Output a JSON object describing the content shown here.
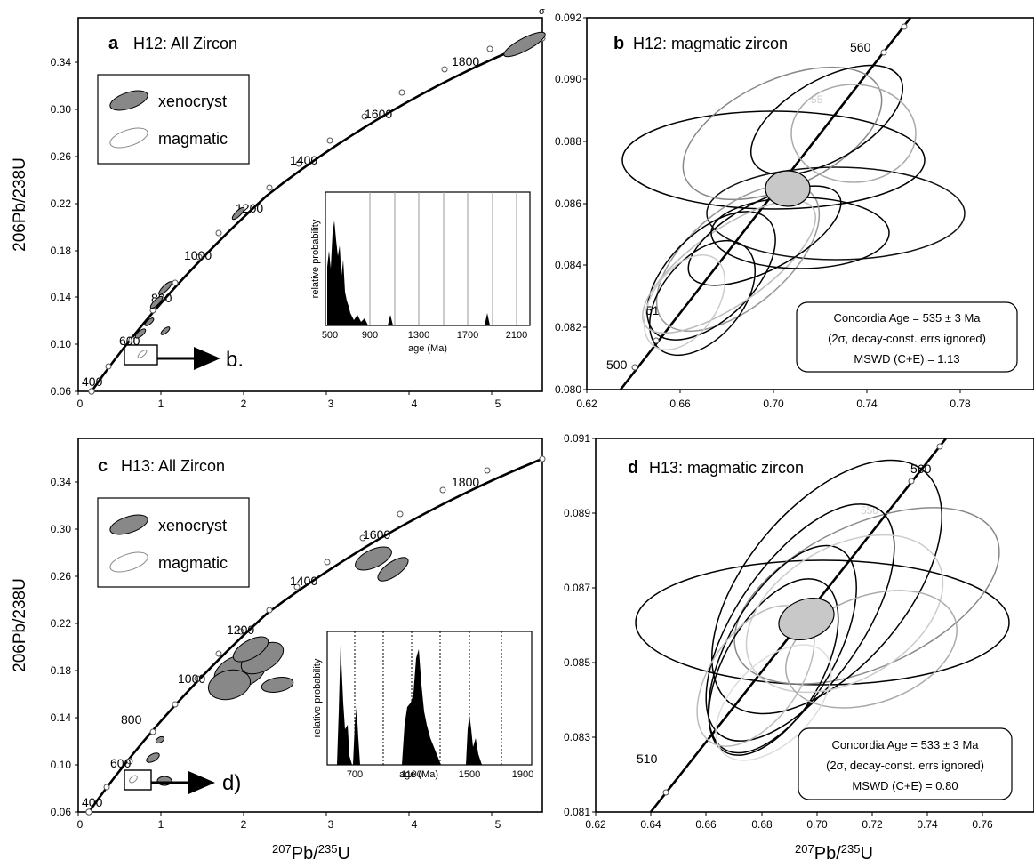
{
  "figure": {
    "ylabel_main": "206Pb/238U",
    "ylabel_sup_a": "206",
    "ylabel_base_a": "Pb/",
    "ylabel_sup_b": "238",
    "ylabel_base_b": "U",
    "xlabel_sup_a": "207",
    "xlabel_base_a": "Pb/",
    "xlabel_sup_b": "235",
    "xlabel_base_b": "U",
    "sigma_mark": "σ"
  },
  "legend": {
    "xenocryst": "xenocryst",
    "magmatic": "magmatic"
  },
  "chart_data": [
    {
      "panel": "a",
      "type": "scatter",
      "letter": "a",
      "title": "H12: All Zircon",
      "xlim": [
        0,
        5.5
      ],
      "ylim": [
        0.06,
        0.35
      ],
      "xticks": [
        "0",
        "1",
        "2",
        "3",
        "4",
        "5"
      ],
      "yticks": [
        "0.06",
        "0.10",
        "0.14",
        "0.18",
        "0.22",
        "0.26",
        "0.30",
        "0.34"
      ],
      "concordia_ages_labeled": [
        "400",
        "600",
        "800",
        "1000",
        "1200",
        "1400",
        "1600",
        "1800"
      ],
      "arrow_label": "b.",
      "xenocryst_points": [
        {
          "x": 5.2,
          "y": 0.33
        },
        {
          "x": 1.15,
          "y": 0.13
        }
      ],
      "magmatic_points": [
        {
          "x": 0.7,
          "y": 0.087
        },
        {
          "x": 0.75,
          "y": 0.09
        },
        {
          "x": 0.9,
          "y": 0.1
        },
        {
          "x": 1.0,
          "y": 0.11
        },
        {
          "x": 1.9,
          "y": 0.18
        }
      ],
      "inset": {
        "type": "area",
        "xlabel": "age (Ma)",
        "ylabel": "relative probability",
        "xticks": [
          "500",
          "900",
          "1300",
          "1700",
          "2100"
        ],
        "xlim": [
          500,
          2200
        ],
        "x": [
          520,
          560,
          590,
          620,
          650,
          680,
          710,
          750,
          790,
          830,
          1050,
          1850
        ],
        "y": [
          0.6,
          1.0,
          0.55,
          0.7,
          0.35,
          0.25,
          0.3,
          0.2,
          0.15,
          0.12,
          0.12,
          0.08
        ]
      }
    },
    {
      "panel": "b",
      "type": "scatter",
      "letter": "b",
      "title": "H12: magmatic zircon",
      "xlim": [
        0.62,
        0.8
      ],
      "ylim": [
        0.08,
        0.092
      ],
      "xticks": [
        "0.62",
        "0.66",
        "0.70",
        "0.74",
        "0.78"
      ],
      "yticks": [
        "0.080",
        "0.082",
        "0.084",
        "0.086",
        "0.088",
        "0.090",
        "0.092"
      ],
      "concordia_ages_labeled": [
        "500",
        "51",
        "560"
      ],
      "faint_concordia_label": "55",
      "concordia_age_point": {
        "x": 0.693,
        "y": 0.0864
      },
      "annotation": {
        "line1": "Concordia Age = 535 ± 3 Ma",
        "line2": "(2σ, decay-const. errs ignored)",
        "line3": "MSWD (C+E) = 1.13"
      }
    },
    {
      "panel": "c",
      "type": "scatter",
      "letter": "c",
      "title": "H13: All Zircon",
      "xlim": [
        0,
        5.5
      ],
      "ylim": [
        0.06,
        0.35
      ],
      "xticks": [
        "0",
        "1",
        "2",
        "3",
        "4",
        "5"
      ],
      "yticks": [
        "0.06",
        "0.10",
        "0.14",
        "0.18",
        "0.22",
        "0.26",
        "0.30",
        "0.34"
      ],
      "concordia_ages_labeled": [
        "400",
        "600",
        "800",
        "1000",
        "1200",
        "1400",
        "1600",
        "1800"
      ],
      "arrow_label": "d)",
      "xenocryst_points": [
        {
          "x": 3.7,
          "y": 0.262
        },
        {
          "x": 4.0,
          "y": 0.258
        },
        {
          "x": 2.0,
          "y": 0.19
        },
        {
          "x": 2.3,
          "y": 0.2
        },
        {
          "x": 2.45,
          "y": 0.185
        },
        {
          "x": 1.05,
          "y": 0.11
        }
      ],
      "magmatic_points": [
        {
          "x": 0.7,
          "y": 0.087
        }
      ],
      "inset": {
        "type": "area",
        "xlabel": "age (Ma)",
        "ylabel": "relative probability",
        "xticks": [
          "700",
          "1100",
          "1500",
          "1900"
        ],
        "xlim": [
          500,
          1950
        ],
        "x": [
          540,
          600,
          650,
          1020,
          1080,
          1120,
          1180,
          1480,
          1540
        ],
        "y": [
          1.0,
          0.4,
          0.55,
          0.5,
          1.0,
          0.6,
          0.2,
          0.55,
          0.3
        ]
      }
    },
    {
      "panel": "d",
      "type": "scatter",
      "letter": "d",
      "title": "H13: magmatic zircon",
      "xlim": [
        0.62,
        0.77
      ],
      "ylim": [
        0.081,
        0.091
      ],
      "xticks": [
        "0.62",
        "0.64",
        "0.66",
        "0.68",
        "0.70",
        "0.72",
        "0.74",
        "0.76"
      ],
      "yticks": [
        "0.081",
        "0.083",
        "0.085",
        "0.087",
        "0.089",
        "0.091"
      ],
      "concordia_ages_labeled": [
        "510",
        "560"
      ],
      "faint_concordia_label": "550",
      "concordia_age_point": {
        "x": 0.693,
        "y": 0.0861
      },
      "annotation": {
        "line1": "Concordia Age = 533 ± 3 Ma",
        "line2": "(2σ, decay-const. errs ignored)",
        "line3": "MSWD (C+E) = 0.80"
      }
    }
  ]
}
